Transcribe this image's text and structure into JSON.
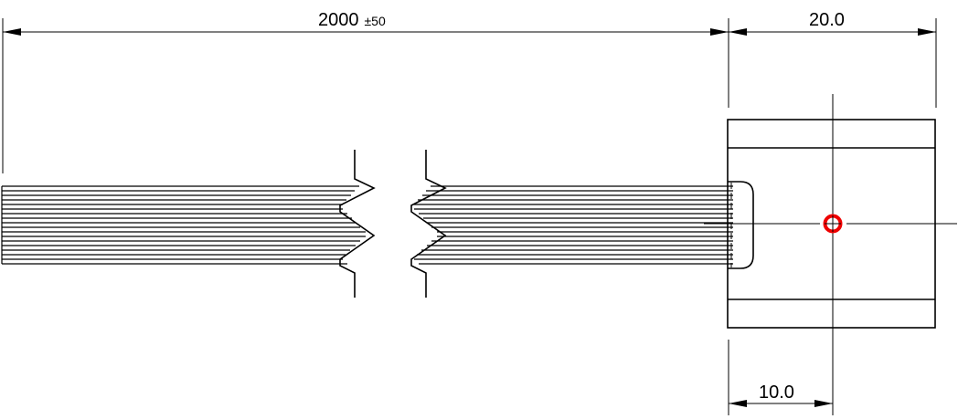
{
  "drawing": {
    "colors": {
      "line": "#000000",
      "marker": "#ee0000",
      "background": "#ffffff"
    },
    "dimensions": {
      "cable_length": {
        "value": "2000",
        "tolerance": "±50"
      },
      "connector_width": {
        "value": "20.0"
      },
      "center_offset": {
        "value": "10.0"
      }
    },
    "marker": {
      "icon": "red-circle-crosshair-icon"
    }
  }
}
